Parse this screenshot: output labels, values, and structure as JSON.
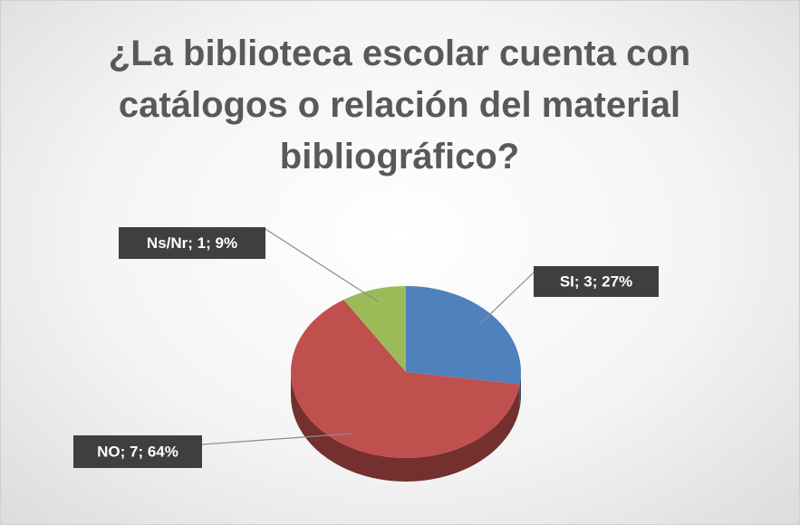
{
  "chart_data": {
    "type": "pie",
    "title": "¿La biblioteca escolar cuenta con catálogos o relación del material bibliográfico?",
    "categories": [
      "SI",
      "NO",
      "Ns/Nr"
    ],
    "values": [
      3,
      7,
      1
    ],
    "value_labels": [
      "SI; 3;  27%",
      "NO; 7; 64%",
      "Ns/Nr; 1;  9%"
    ],
    "colors": [
      "#4f81bd",
      "#c0504d",
      "#9bbb59"
    ]
  }
}
